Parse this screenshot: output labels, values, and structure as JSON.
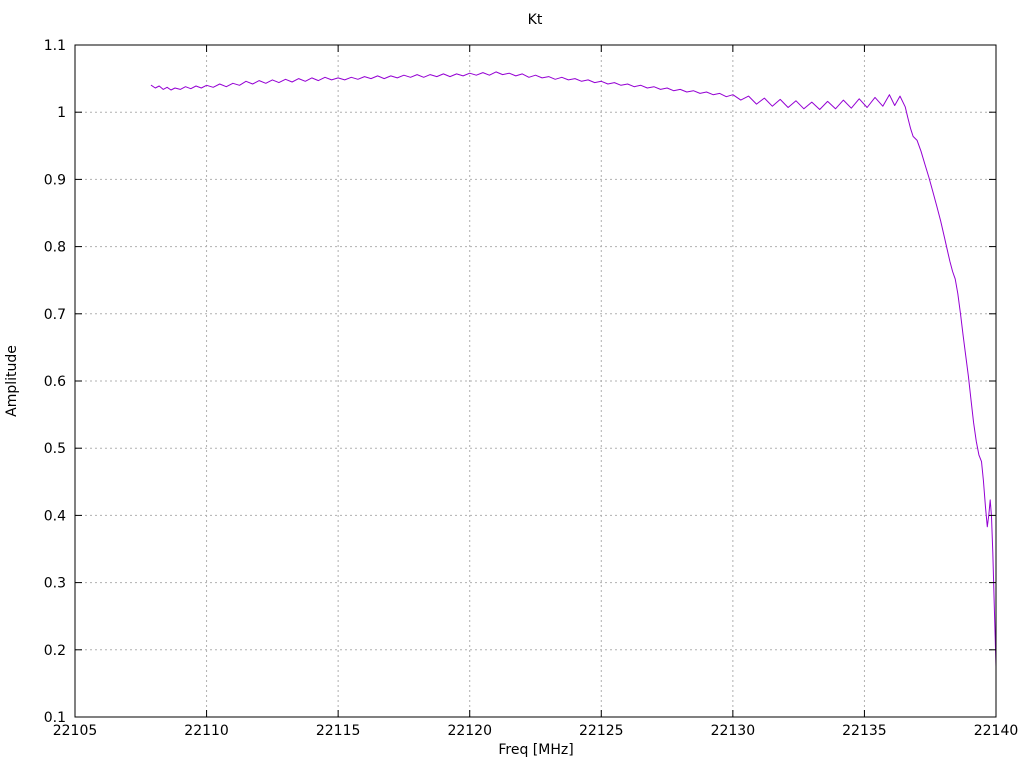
{
  "colors": {
    "background": "#ffffff",
    "axis": "#000000",
    "grid": "#b0b0b0",
    "line": "#9400d3",
    "text": "#000000"
  },
  "chart_data": {
    "type": "line",
    "title": "Kt",
    "xlabel": "Freq [MHz]",
    "ylabel": "Amplitude",
    "xlim": [
      22105,
      22140
    ],
    "ylim": [
      0.1,
      1.1
    ],
    "grid": true,
    "legend": "none",
    "xticks": {
      "values": [
        22105,
        22110,
        22115,
        22120,
        22125,
        22130,
        22135,
        22140
      ],
      "labels": [
        "22105",
        "22110",
        "22115",
        "22120",
        "22125",
        "22130",
        "22135",
        "22140"
      ]
    },
    "yticks": {
      "values": [
        0.1,
        0.2,
        0.3,
        0.4,
        0.5,
        0.6,
        0.7,
        0.8,
        0.9,
        1.0,
        1.1
      ],
      "labels": [
        "0.1",
        "0.2",
        "0.3",
        "0.4",
        "0.5",
        "0.6",
        "0.7",
        "0.8",
        "0.9",
        "1",
        "1.1"
      ]
    },
    "series": [
      {
        "name": "Kt",
        "color": "#9400d3",
        "points": [
          [
            22107.9,
            1.04
          ],
          [
            22108.05,
            1.036
          ],
          [
            22108.2,
            1.039
          ],
          [
            22108.35,
            1.034
          ],
          [
            22108.5,
            1.037
          ],
          [
            22108.65,
            1.033
          ],
          [
            22108.8,
            1.036
          ],
          [
            22109.0,
            1.034
          ],
          [
            22109.2,
            1.038
          ],
          [
            22109.4,
            1.035
          ],
          [
            22109.6,
            1.039
          ],
          [
            22109.8,
            1.036
          ],
          [
            22110.0,
            1.04
          ],
          [
            22110.25,
            1.037
          ],
          [
            22110.5,
            1.042
          ],
          [
            22110.75,
            1.038
          ],
          [
            22111.0,
            1.043
          ],
          [
            22111.25,
            1.04
          ],
          [
            22111.5,
            1.046
          ],
          [
            22111.75,
            1.042
          ],
          [
            22112.0,
            1.047
          ],
          [
            22112.25,
            1.043
          ],
          [
            22112.5,
            1.048
          ],
          [
            22112.75,
            1.044
          ],
          [
            22113.0,
            1.049
          ],
          [
            22113.25,
            1.045
          ],
          [
            22113.5,
            1.05
          ],
          [
            22113.75,
            1.046
          ],
          [
            22114.0,
            1.051
          ],
          [
            22114.25,
            1.047
          ],
          [
            22114.5,
            1.052
          ],
          [
            22114.75,
            1.048
          ],
          [
            22115.0,
            1.051
          ],
          [
            22115.25,
            1.048
          ],
          [
            22115.5,
            1.052
          ],
          [
            22115.75,
            1.049
          ],
          [
            22116.0,
            1.053
          ],
          [
            22116.25,
            1.05
          ],
          [
            22116.5,
            1.054
          ],
          [
            22116.75,
            1.05
          ],
          [
            22117.0,
            1.054
          ],
          [
            22117.25,
            1.051
          ],
          [
            22117.5,
            1.055
          ],
          [
            22117.75,
            1.052
          ],
          [
            22118.0,
            1.056
          ],
          [
            22118.25,
            1.052
          ],
          [
            22118.5,
            1.056
          ],
          [
            22118.75,
            1.053
          ],
          [
            22119.0,
            1.057
          ],
          [
            22119.25,
            1.053
          ],
          [
            22119.5,
            1.057
          ],
          [
            22119.75,
            1.054
          ],
          [
            22120.0,
            1.058
          ],
          [
            22120.25,
            1.055
          ],
          [
            22120.5,
            1.059
          ],
          [
            22120.75,
            1.055
          ],
          [
            22121.0,
            1.06
          ],
          [
            22121.25,
            1.056
          ],
          [
            22121.5,
            1.058
          ],
          [
            22121.75,
            1.054
          ],
          [
            22122.0,
            1.057
          ],
          [
            22122.25,
            1.052
          ],
          [
            22122.5,
            1.055
          ],
          [
            22122.75,
            1.051
          ],
          [
            22123.0,
            1.053
          ],
          [
            22123.25,
            1.049
          ],
          [
            22123.5,
            1.052
          ],
          [
            22123.75,
            1.048
          ],
          [
            22124.0,
            1.05
          ],
          [
            22124.25,
            1.046
          ],
          [
            22124.5,
            1.048
          ],
          [
            22124.75,
            1.044
          ],
          [
            22125.0,
            1.046
          ],
          [
            22125.25,
            1.042
          ],
          [
            22125.5,
            1.044
          ],
          [
            22125.75,
            1.04
          ],
          [
            22126.0,
            1.042
          ],
          [
            22126.25,
            1.038
          ],
          [
            22126.5,
            1.04
          ],
          [
            22126.75,
            1.036
          ],
          [
            22127.0,
            1.038
          ],
          [
            22127.25,
            1.034
          ],
          [
            22127.5,
            1.036
          ],
          [
            22127.75,
            1.032
          ],
          [
            22128.0,
            1.034
          ],
          [
            22128.25,
            1.03
          ],
          [
            22128.5,
            1.032
          ],
          [
            22128.75,
            1.028
          ],
          [
            22129.0,
            1.03
          ],
          [
            22129.25,
            1.026
          ],
          [
            22129.5,
            1.028
          ],
          [
            22129.75,
            1.023
          ],
          [
            22130.0,
            1.026
          ],
          [
            22130.3,
            1.018
          ],
          [
            22130.6,
            1.024
          ],
          [
            22130.9,
            1.012
          ],
          [
            22131.2,
            1.021
          ],
          [
            22131.5,
            1.009
          ],
          [
            22131.8,
            1.019
          ],
          [
            22132.1,
            1.007
          ],
          [
            22132.4,
            1.017
          ],
          [
            22132.7,
            1.005
          ],
          [
            22133.0,
            1.015
          ],
          [
            22133.3,
            1.004
          ],
          [
            22133.6,
            1.016
          ],
          [
            22133.9,
            1.005
          ],
          [
            22134.2,
            1.018
          ],
          [
            22134.5,
            1.006
          ],
          [
            22134.8,
            1.02
          ],
          [
            22135.1,
            1.007
          ],
          [
            22135.4,
            1.022
          ],
          [
            22135.7,
            1.009
          ],
          [
            22135.95,
            1.026
          ],
          [
            22136.15,
            1.01
          ],
          [
            22136.35,
            1.024
          ],
          [
            22136.55,
            1.008
          ],
          [
            22136.65,
            0.992
          ],
          [
            22136.75,
            0.976
          ],
          [
            22136.85,
            0.964
          ],
          [
            22137.0,
            0.958
          ],
          [
            22137.15,
            0.942
          ],
          [
            22137.3,
            0.922
          ],
          [
            22137.45,
            0.903
          ],
          [
            22137.6,
            0.882
          ],
          [
            22137.75,
            0.86
          ],
          [
            22137.9,
            0.838
          ],
          [
            22138.05,
            0.812
          ],
          [
            22138.15,
            0.795
          ],
          [
            22138.25,
            0.778
          ],
          [
            22138.35,
            0.763
          ],
          [
            22138.45,
            0.752
          ],
          [
            22138.55,
            0.73
          ],
          [
            22138.65,
            0.7
          ],
          [
            22138.75,
            0.668
          ],
          [
            22138.85,
            0.638
          ],
          [
            22138.95,
            0.607
          ],
          [
            22139.05,
            0.572
          ],
          [
            22139.15,
            0.538
          ],
          [
            22139.25,
            0.51
          ],
          [
            22139.35,
            0.49
          ],
          [
            22139.45,
            0.48
          ],
          [
            22139.52,
            0.452
          ],
          [
            22139.6,
            0.412
          ],
          [
            22139.67,
            0.383
          ],
          [
            22139.73,
            0.402
          ],
          [
            22139.78,
            0.423
          ],
          [
            22139.83,
            0.398
          ],
          [
            22139.88,
            0.345
          ],
          [
            22139.93,
            0.27
          ],
          [
            22140.0,
            0.175
          ]
        ]
      }
    ]
  }
}
